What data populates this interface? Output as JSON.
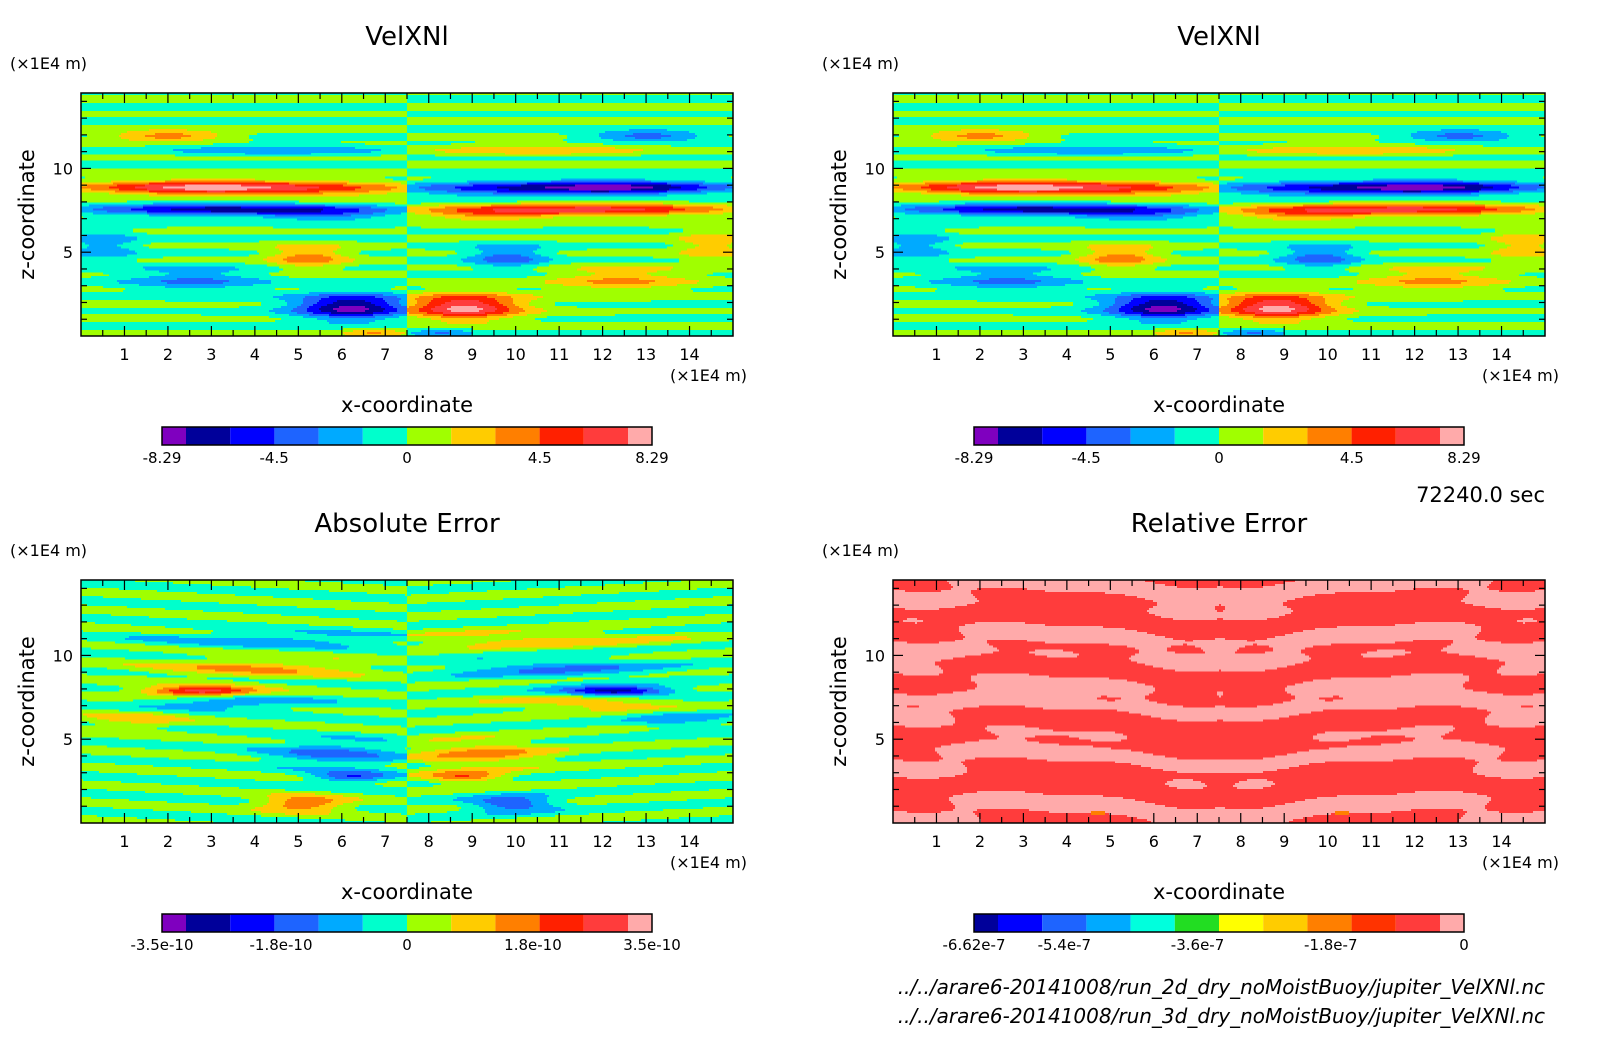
{
  "time_label": "72240.0 sec",
  "files": [
    "../../arare6-20141008/run_2d_dry_noMoistBuoy/jupiter_VelXNl.nc",
    "../../arare6-20141008/run_3d_dry_noMoistBuoy/jupiter_VelXNl.nc"
  ],
  "chart_data": [
    {
      "id": "panel-velxnl-2d",
      "type": "heatmap",
      "title": "VelXNl",
      "xlabel": "x-coordinate",
      "ylabel": "z-coordinate",
      "x_unit": "(×1E4 m)",
      "y_unit": "(×1E4 m)",
      "xlim": [
        0,
        15
      ],
      "ylim": [
        0,
        14.5
      ],
      "x_ticks": [
        1,
        2,
        3,
        4,
        5,
        6,
        7,
        8,
        9,
        10,
        11,
        12,
        13,
        14
      ],
      "y_ticks": [
        5,
        10
      ],
      "colorbar": {
        "colors": [
          "#7f00bf",
          "#00009a",
          "#0000ff",
          "#1e64ff",
          "#00aaff",
          "#00ffcc",
          "#a0ff00",
          "#ffcc00",
          "#ff7f00",
          "#ff2000",
          "#ff3c3c",
          "#ffaaaa"
        ],
        "labels": [
          "-8.29",
          "-4.5",
          "0",
          "4.5",
          "8.29"
        ],
        "label_positions": [
          0,
          0.2289,
          0.5,
          0.7711,
          1
        ]
      },
      "field": "symmetric"
    },
    {
      "id": "panel-velxnl-3d",
      "type": "heatmap",
      "title": "VelXNl",
      "xlabel": "x-coordinate",
      "ylabel": "z-coordinate",
      "x_unit": "(×1E4 m)",
      "y_unit": "(×1E4 m)",
      "xlim": [
        0,
        15
      ],
      "ylim": [
        0,
        14.5
      ],
      "x_ticks": [
        1,
        2,
        3,
        4,
        5,
        6,
        7,
        8,
        9,
        10,
        11,
        12,
        13,
        14
      ],
      "y_ticks": [
        5,
        10
      ],
      "colorbar": {
        "colors": [
          "#7f00bf",
          "#00009a",
          "#0000ff",
          "#1e64ff",
          "#00aaff",
          "#00ffcc",
          "#a0ff00",
          "#ffcc00",
          "#ff7f00",
          "#ff2000",
          "#ff3c3c",
          "#ffaaaa"
        ],
        "labels": [
          "-8.29",
          "-4.5",
          "0",
          "4.5",
          "8.29"
        ],
        "label_positions": [
          0,
          0.2289,
          0.5,
          0.7711,
          1
        ]
      },
      "field": "symmetric"
    },
    {
      "id": "panel-absolute-error",
      "type": "heatmap",
      "title": "Absolute Error",
      "xlabel": "x-coordinate",
      "ylabel": "z-coordinate",
      "x_unit": "(×1E4 m)",
      "y_unit": "(×1E4 m)",
      "xlim": [
        0,
        15
      ],
      "ylim": [
        0,
        14.5
      ],
      "x_ticks": [
        1,
        2,
        3,
        4,
        5,
        6,
        7,
        8,
        9,
        10,
        11,
        12,
        13,
        14
      ],
      "y_ticks": [
        5,
        10
      ],
      "colorbar": {
        "colors": [
          "#7f00bf",
          "#00009a",
          "#0000ff",
          "#1e64ff",
          "#00aaff",
          "#00ffcc",
          "#a0ff00",
          "#ffcc00",
          "#ff7f00",
          "#ff2000",
          "#ff3c3c",
          "#ffaaaa"
        ],
        "labels": [
          "-3.5e-10",
          "-1.8e-10",
          "0",
          "1.8e-10",
          "3.5e-10"
        ],
        "label_positions": [
          0,
          0.2429,
          0.5,
          0.7571,
          1
        ]
      },
      "field": "abserr"
    },
    {
      "id": "panel-relative-error",
      "type": "heatmap",
      "title": "Relative Error",
      "xlabel": "x-coordinate",
      "ylabel": "z-coordinate",
      "x_unit": "(×1E4 m)",
      "y_unit": "(×1E4 m)",
      "xlim": [
        0,
        15
      ],
      "ylim": [
        0,
        14.5
      ],
      "x_ticks": [
        1,
        2,
        3,
        4,
        5,
        6,
        7,
        8,
        9,
        10,
        11,
        12,
        13,
        14
      ],
      "y_ticks": [
        5,
        10
      ],
      "colorbar": {
        "colors": [
          "#00009a",
          "#0000ff",
          "#1e64ff",
          "#00aaff",
          "#00ffdd",
          "#22dd22",
          "#ffff00",
          "#ffcc00",
          "#ff7f00",
          "#ff3300",
          "#ff3c3c",
          "#ffaaaa"
        ],
        "labels": [
          "-6.62e-7",
          "-5.4e-7",
          "-3.6e-7",
          "-1.8e-7",
          "0"
        ],
        "label_positions": [
          0,
          0.1843,
          0.4562,
          0.7281,
          1
        ]
      },
      "field": "relerr"
    }
  ]
}
